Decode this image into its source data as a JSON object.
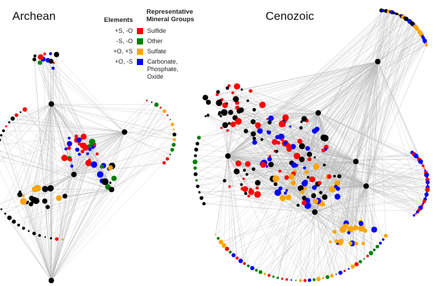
{
  "titles": {
    "left": "Archean",
    "right": "Cenozoic"
  },
  "legend": {
    "elements_header": "Elements",
    "groups_header": "Representative Mineral Groups",
    "items": [
      {
        "elements": "+S, -O",
        "group": "Sulfide",
        "color": "#ff0000"
      },
      {
        "elements": "-S, -O",
        "group": "Other",
        "color": "#008000"
      },
      {
        "elements": "+O, +S",
        "group": "Sulfate",
        "color": "#ffa500"
      },
      {
        "elements": "+O, -S",
        "group": "Carbonate, Phosphate, Oxide",
        "color": "#0000ff"
      }
    ]
  },
  "element_node_color": "#000000",
  "edge_color": "#bbbbbb"
}
